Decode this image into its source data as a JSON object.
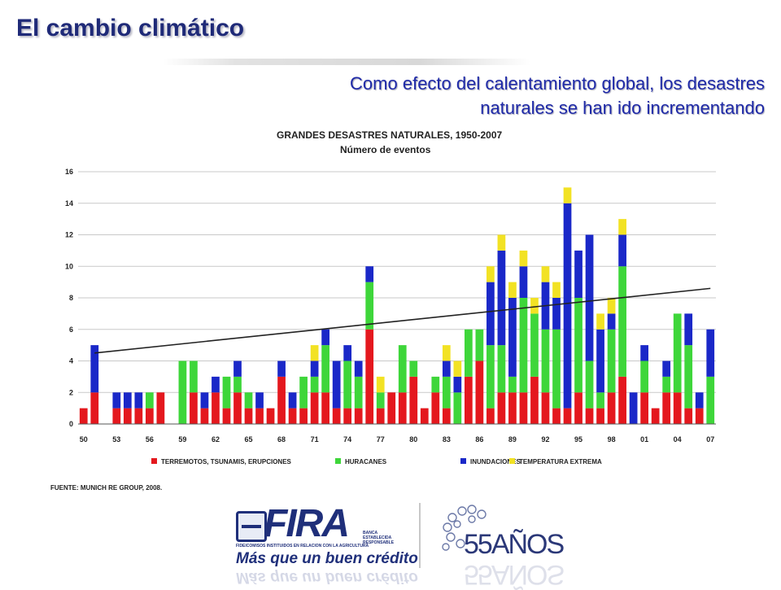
{
  "slide": {
    "title": "El cambio climático",
    "subtitle_line1": "Como efecto del calentamiento global, los desastres",
    "subtitle_line2": "naturales se han ido incrementando"
  },
  "chart_data": {
    "type": "bar",
    "stacked": true,
    "title": "GRANDES DESASTRES NATURALES, 1950-2007",
    "subtitle": "Número de eventos",
    "xlabel": "",
    "ylabel": "",
    "ylim": [
      0,
      16
    ],
    "yticks": [
      0,
      2,
      4,
      6,
      8,
      10,
      12,
      14,
      16
    ],
    "grid": true,
    "legend_position": "bottom",
    "x": [
      1950,
      1951,
      1952,
      1953,
      1954,
      1955,
      1956,
      1957,
      1958,
      1959,
      1960,
      1961,
      1962,
      1963,
      1964,
      1965,
      1966,
      1967,
      1968,
      1969,
      1970,
      1971,
      1972,
      1973,
      1974,
      1975,
      1976,
      1977,
      1978,
      1979,
      1980,
      1981,
      1982,
      1983,
      1984,
      1985,
      1986,
      1987,
      1988,
      1989,
      1990,
      1991,
      1992,
      1993,
      1994,
      1995,
      1996,
      1997,
      1998,
      1999,
      2000,
      2001,
      2002,
      2003,
      2004,
      2005,
      2006,
      2007
    ],
    "xtick_labels": [
      "50",
      "53",
      "56",
      "59",
      "62",
      "65",
      "68",
      "71",
      "74",
      "77",
      "80",
      "83",
      "86",
      "89",
      "92",
      "95",
      "98",
      "01",
      "04",
      "07"
    ],
    "series": [
      {
        "name": "TERREMOTOS, TSUNAMIS, ERUPCIONES",
        "color": "#e4181e",
        "values": [
          1,
          2,
          0,
          1,
          1,
          1,
          1,
          2,
          0,
          0,
          2,
          1,
          2,
          1,
          2,
          1,
          1,
          1,
          3,
          1,
          1,
          2,
          2,
          1,
          1,
          1,
          6,
          1,
          2,
          2,
          3,
          1,
          2,
          1,
          0,
          3,
          4,
          1,
          2,
          2,
          2,
          3,
          2,
          1,
          1,
          2,
          1,
          1,
          2,
          3,
          0,
          2,
          1,
          2,
          2,
          1,
          1,
          0
        ]
      },
      {
        "name": "HURACANES",
        "color": "#3ed63a",
        "values": [
          0,
          0,
          0,
          0,
          0,
          0,
          1,
          0,
          0,
          4,
          2,
          0,
          0,
          2,
          1,
          1,
          0,
          0,
          0,
          0,
          2,
          1,
          3,
          0,
          3,
          2,
          3,
          1,
          0,
          3,
          1,
          0,
          1,
          2,
          2,
          3,
          2,
          4,
          3,
          1,
          6,
          4,
          4,
          5,
          0,
          6,
          3,
          1,
          4,
          7,
          0,
          2,
          0,
          1,
          5,
          4,
          0,
          3
        ]
      },
      {
        "name": "INUNDACIONES",
        "color": "#1a28c8",
        "values": [
          0,
          3,
          0,
          1,
          1,
          1,
          0,
          0,
          0,
          0,
          0,
          1,
          1,
          0,
          1,
          0,
          1,
          0,
          1,
          1,
          0,
          1,
          1,
          3,
          1,
          1,
          1,
          0,
          0,
          0,
          0,
          0,
          0,
          1,
          1,
          0,
          0,
          4,
          6,
          5,
          2,
          0,
          3,
          2,
          13,
          3,
          8,
          4,
          1,
          2,
          2,
          1,
          0,
          1,
          0,
          2,
          1,
          3
        ]
      },
      {
        "name": "TEMPERATURA EXTREMA",
        "color": "#f2e224",
        "values": [
          0,
          0,
          0,
          0,
          0,
          0,
          0,
          0,
          0,
          0,
          0,
          0,
          0,
          0,
          0,
          0,
          0,
          0,
          0,
          0,
          0,
          1,
          0,
          0,
          0,
          0,
          0,
          1,
          0,
          0,
          0,
          0,
          0,
          1,
          1,
          0,
          0,
          1,
          1,
          1,
          1,
          1,
          1,
          1,
          1,
          0,
          0,
          1,
          1,
          1,
          0,
          0,
          0,
          0,
          0,
          0,
          0,
          0
        ]
      }
    ],
    "trendline": {
      "x": [
        1951,
        2007
      ],
      "y": [
        4.5,
        8.6
      ],
      "color": "#222222"
    },
    "source": "FUENTE: MUNICH RE GROUP, 2008."
  },
  "logos": {
    "fira_name": "FIRA",
    "fira_org": "FIDEICOMISOS INSTITUIDOS EN RELACION CON LA AGRICULTURA",
    "fira_bank": "BANCA ESTABLECIDA RESPONSABLE",
    "fira_tagline": "Más que un buen crédito",
    "anniversary": "55AÑOS"
  }
}
